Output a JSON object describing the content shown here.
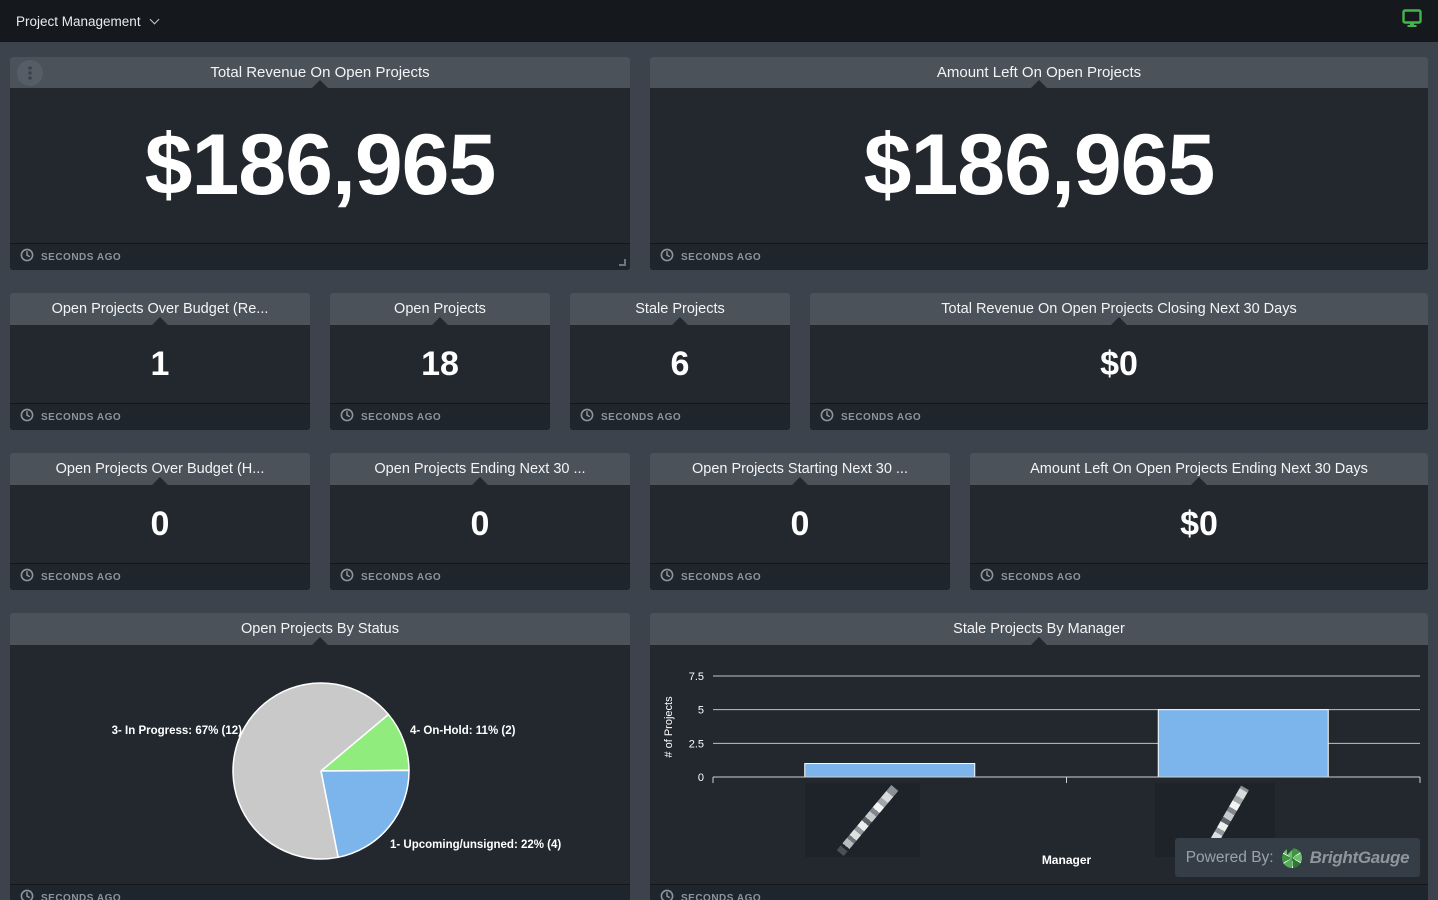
{
  "topbar": {
    "title": "Project Management"
  },
  "labels": {
    "updated": "SECONDS AGO",
    "powered_by": "Powered By:",
    "brand": "BrightGauge"
  },
  "theme": {
    "accent_green": "#43b64a",
    "bar_blue": "#7cb5ec",
    "header_gray": "#4b525a",
    "card_bg": "#23282f"
  },
  "rows": {
    "big": [
      {
        "title": "Total Revenue On Open Projects",
        "value": "$186,965"
      },
      {
        "title": "Amount Left On Open Projects",
        "value": "$186,965"
      }
    ],
    "row2": [
      {
        "title": "Open Projects Over Budget (Re...",
        "value": "1"
      },
      {
        "title": "Open Projects",
        "value": "18"
      },
      {
        "title": "Stale Projects",
        "value": "6"
      },
      {
        "title": "Total Revenue On Open Projects Closing Next 30 Days",
        "value": "$0"
      }
    ],
    "row3": [
      {
        "title": "Open Projects Over Budget (H...",
        "value": "0"
      },
      {
        "title": "Open Projects Ending Next 30 ...",
        "value": "0"
      },
      {
        "title": "Open Projects Starting Next 30 ...",
        "value": "0"
      },
      {
        "title": "Amount Left On Open Projects Ending Next 30 Days",
        "value": "$0"
      }
    ]
  },
  "chart_data": [
    {
      "type": "pie",
      "title": "Open Projects By Status",
      "slices": [
        {
          "label": "4- On-Hold",
          "percent": 11,
          "count": 2,
          "color": "#90ed7d",
          "annotation": "4- On-Hold: 11% (2)"
        },
        {
          "label": "1- Upcoming/unsigned",
          "percent": 22,
          "count": 4,
          "color": "#7cb5ec",
          "annotation": "1- Upcoming/unsigned: 22% (4)"
        },
        {
          "label": "3- In Progress",
          "percent": 67,
          "count": 12,
          "color": "#c9c9c9",
          "annotation": "3- In Progress: 67% (12)"
        }
      ],
      "start_angle_deg": 50,
      "slice_border_color": "#ffffff",
      "legend": "none"
    },
    {
      "type": "bar",
      "title": "Stale Projects By Manager",
      "categories": [
        "",
        ""
      ],
      "categories_censored": true,
      "values": [
        1,
        5
      ],
      "bar_color": "#7cb5ec",
      "xlabel": "Manager",
      "ylabel": "# of Projects",
      "yticks": [
        0,
        2.5,
        5,
        7.5
      ],
      "ylim": [
        0,
        7.5
      ],
      "grid": true
    }
  ]
}
